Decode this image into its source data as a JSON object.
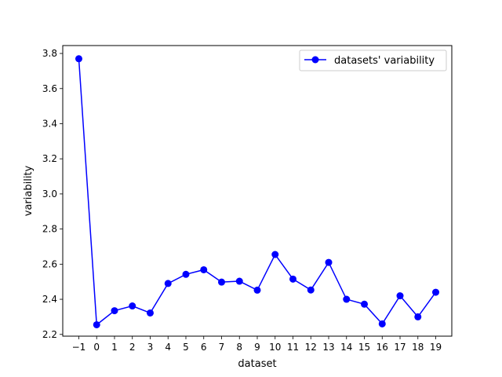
{
  "chart_data": {
    "type": "line",
    "title": "",
    "xlabel": "dataset",
    "ylabel": "variability",
    "x": [
      -1,
      0,
      1,
      2,
      3,
      4,
      5,
      6,
      7,
      8,
      9,
      10,
      11,
      12,
      13,
      14,
      15,
      16,
      17,
      18,
      19
    ],
    "x_tick_labels": [
      "−1",
      "0",
      "1",
      "2",
      "3",
      "4",
      "5",
      "6",
      "7",
      "8",
      "9",
      "10",
      "11",
      "12",
      "13",
      "14",
      "15",
      "16",
      "17",
      "18",
      "19"
    ],
    "series": [
      {
        "name": "datasets' variability",
        "color": "#0000ff",
        "marker": "circle",
        "values": [
          3.77,
          2.255,
          2.335,
          2.362,
          2.322,
          2.49,
          2.542,
          2.568,
          2.498,
          2.503,
          2.452,
          2.655,
          2.515,
          2.453,
          2.61,
          2.4,
          2.372,
          2.26,
          2.42,
          2.3,
          2.44
        ]
      }
    ],
    "xlim": [
      -1.9,
      19.9
    ],
    "ylim": [
      2.19,
      3.845
    ],
    "y_ticks": [
      2.2,
      2.4,
      2.6,
      2.8,
      3.0,
      3.2,
      3.4,
      3.6,
      3.8
    ],
    "y_tick_labels": [
      "2.2",
      "2.4",
      "2.6",
      "2.8",
      "3.0",
      "3.2",
      "3.4",
      "3.6",
      "3.8"
    ],
    "grid": false,
    "legend_position": "top-right"
  }
}
